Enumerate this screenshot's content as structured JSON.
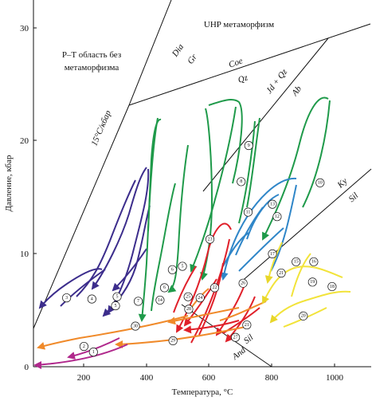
{
  "axes": {
    "xlabel": "Температура, °C",
    "ylabel": "Давление, кбар",
    "xticks": [
      "200",
      "400",
      "600",
      "800",
      "1000"
    ],
    "yticks": [
      "0",
      "10",
      "20",
      "30"
    ],
    "xlim": [
      40,
      1110
    ],
    "ylim": [
      0,
      32.5
    ]
  },
  "labels": {
    "no_metamorphism_1": "P–T область без",
    "no_metamorphism_2": "метаморфизма",
    "uhp": "UHP метаморфизм",
    "gradient": "15°C/кбар",
    "dia": "Dia",
    "gr": "Gr",
    "coe": "Coe",
    "qz": "Qz",
    "jd_qz": "Jd + Qz",
    "ab": "Ab",
    "ky": "Ky",
    "sil_upper": "Sil",
    "sil_lower": "Sil",
    "and": "And"
  },
  "colors": {
    "purple": "#3c2d8c",
    "green": "#1f9a4a",
    "blue": "#2f86c8",
    "red": "#e0202a",
    "orange": "#f08a2a",
    "yellow": "#f2e33a",
    "magenta": "#b0288c"
  },
  "markers": [
    {
      "id": "1",
      "x": 230,
      "y": 1.3
    },
    {
      "id": "2",
      "x": 200,
      "y": 1.8
    },
    {
      "id": "3",
      "x": 145,
      "y": 6.1
    },
    {
      "id": "4",
      "x": 225,
      "y": 6.0
    },
    {
      "id": "5",
      "x": 305,
      "y": 6.2
    },
    {
      "id": "5",
      "x": 300,
      "y": 5.4
    },
    {
      "id": "5",
      "x": 512,
      "y": 8.9
    },
    {
      "id": "6",
      "x": 480,
      "y": 8.6
    },
    {
      "id": "6",
      "x": 455,
      "y": 7.0
    },
    {
      "id": "7",
      "x": 372,
      "y": 5.8
    },
    {
      "id": "8",
      "x": 698,
      "y": 16.4
    },
    {
      "id": "9",
      "x": 722,
      "y": 19.6
    },
    {
      "id": "10",
      "x": 948,
      "y": 16.3
    },
    {
      "id": "11",
      "x": 720,
      "y": 13.7
    },
    {
      "id": "12",
      "x": 812,
      "y": 13.3
    },
    {
      "id": "13",
      "x": 797,
      "y": 14.4
    },
    {
      "id": "14",
      "x": 441,
      "y": 5.9
    },
    {
      "id": "15",
      "x": 872,
      "y": 9.3
    },
    {
      "id": "16",
      "x": 928,
      "y": 9.3
    },
    {
      "id": "17",
      "x": 797,
      "y": 10.0
    },
    {
      "id": "18",
      "x": 986,
      "y": 7.1
    },
    {
      "id": "19",
      "x": 924,
      "y": 7.5
    },
    {
      "id": "20",
      "x": 895,
      "y": 4.5
    },
    {
      "id": "21",
      "x": 825,
      "y": 8.3
    },
    {
      "id": "21",
      "x": 716,
      "y": 3.7
    },
    {
      "id": "22",
      "x": 614,
      "y": 7.0
    },
    {
      "id": "23",
      "x": 599,
      "y": 11.3
    },
    {
      "id": "24",
      "x": 568,
      "y": 6.1
    },
    {
      "id": "25",
      "x": 530,
      "y": 6.2
    },
    {
      "id": "26",
      "x": 704,
      "y": 7.4
    },
    {
      "id": "27",
      "x": 680,
      "y": 2.6
    },
    {
      "id": "28",
      "x": 532,
      "y": 5.1
    },
    {
      "id": "29",
      "x": 482,
      "y": 2.3
    },
    {
      "id": "30",
      "x": 363,
      "y": 3.6
    }
  ]
}
